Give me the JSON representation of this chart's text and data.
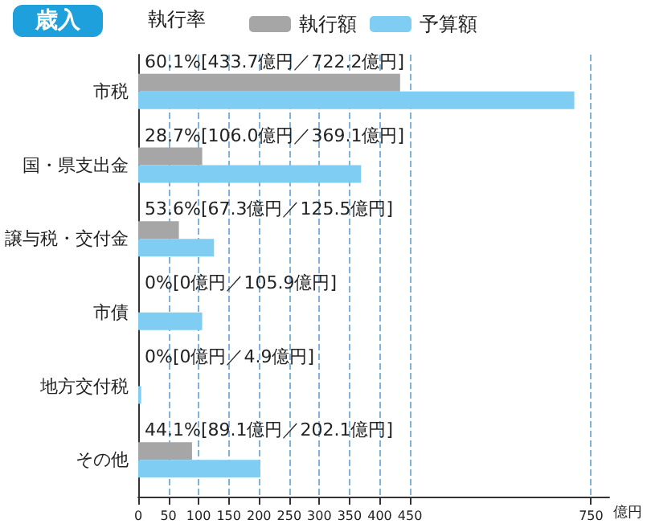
{
  "chart_data": {
    "type": "bar",
    "orientation": "horizontal",
    "title": "歳入",
    "legend_title": "執行率",
    "xlabel": "億円",
    "categories": [
      "市税",
      "国・県支出金",
      "譲与税・交付金",
      "市債",
      "地方交付税",
      "その他"
    ],
    "series": [
      {
        "name": "執行額",
        "color": "#a6a6a6",
        "values": [
          433.7,
          106.0,
          67.3,
          0,
          0,
          89.1
        ]
      },
      {
        "name": "予算額",
        "color": "#7fcdf2",
        "values": [
          722.2,
          369.1,
          125.5,
          105.9,
          4.9,
          202.1
        ]
      }
    ],
    "xlim": [
      0,
      780
    ],
    "xticks": [
      0,
      50,
      100,
      150,
      200,
      250,
      300,
      350,
      400,
      450,
      750
    ],
    "grid": "x",
    "legend": "top",
    "annotations": [
      "60.1%[433.7億円／722.2億円]",
      "28.7%[106.0億円／369.1億円]",
      "53.6%[67.3億円／125.5億円]",
      "0%[0億円／105.9億円]",
      "0%[0億円／4.9億円]",
      "44.1%[89.1億円／202.1億円]"
    ]
  }
}
